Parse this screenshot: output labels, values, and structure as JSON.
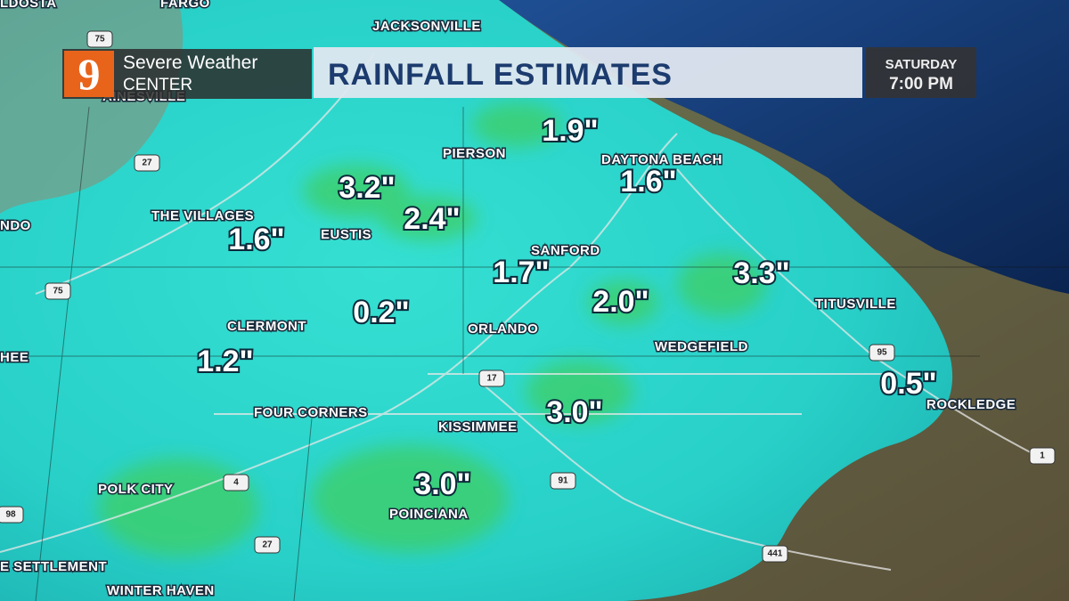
{
  "header": {
    "logo": "9",
    "brand_line1": "Severe Weather",
    "brand_line2": "CENTER",
    "title": "RAINFALL ESTIMATES",
    "day": "SATURDAY",
    "time": "7:00 PM"
  },
  "places": [
    "LDOSTA",
    "FARGO",
    "JACKSONVILLE",
    "AINESVILLE",
    "PIERSON",
    "DAYTONA BEACH",
    "THE VILLAGES",
    "EUSTIS",
    "NDO",
    "SANFORD",
    "CLERMONT",
    "ORLANDO",
    "WEDGEFIELD",
    "TITUSVILLE",
    "HEE",
    "ROCKLEDGE",
    "FOUR CORNERS",
    "KISSIMMEE",
    "POLK CITY",
    "POINCIANA",
    "E SETTLEMENT",
    "WINTER HAVEN"
  ],
  "rainfall_estimates": [
    "1.9\"",
    "3.2\"",
    "1.6\"",
    "2.4\"",
    "1.6\"",
    "1.7\"",
    "3.3\"",
    "0.2\"",
    "2.0\"",
    "1.2\"",
    "0.5\"",
    "3.0\"",
    "3.0\""
  ],
  "highway_shields": [
    "75",
    "27",
    "75",
    "17",
    "95",
    "4",
    "91",
    "98",
    "27",
    "441",
    "1"
  ]
}
